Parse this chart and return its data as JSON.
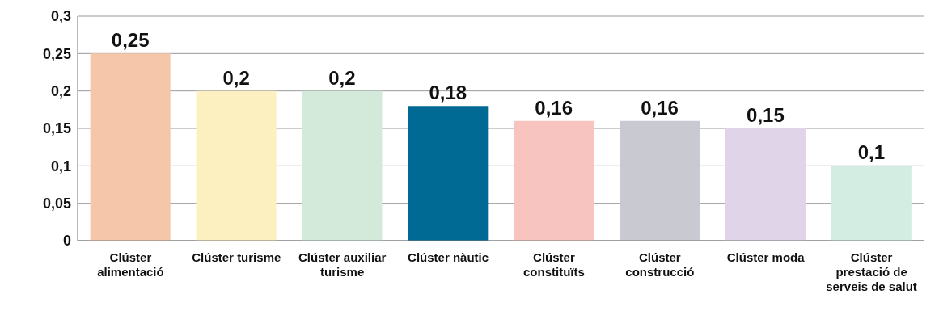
{
  "chart_data": {
    "type": "bar",
    "categories": [
      "Clúster alimentació",
      "Clúster turisme",
      "Clúster auxiliar turisme",
      "Clúster nàutic",
      "Clúster constituïts",
      "Clúster construcció",
      "Clúster moda",
      "Clúster prestació de serveis de salut"
    ],
    "values": [
      0.25,
      0.2,
      0.2,
      0.18,
      0.16,
      0.16,
      0.15,
      0.1
    ],
    "colors": [
      "#f5c6aa",
      "#fcefc0",
      "#d3eadb",
      "#006994",
      "#f8c4c0",
      "#c9c9d1",
      "#e0d4e8",
      "#d3ede3"
    ],
    "value_labels": [
      "0,25",
      "0,2",
      "0,2",
      "0,18",
      "0,16",
      "0,16",
      "0,15",
      "0,1"
    ],
    "ylim": [
      0,
      0.3
    ],
    "yticks": [
      {
        "value": 0,
        "label": "0"
      },
      {
        "value": 0.05,
        "label": "0,05"
      },
      {
        "value": 0.1,
        "label": "0,1"
      },
      {
        "value": 0.15,
        "label": "0,15"
      },
      {
        "value": 0.2,
        "label": "0,2"
      },
      {
        "value": 0.25,
        "label": "0,25"
      },
      {
        "value": 0.3,
        "label": "0,3"
      }
    ],
    "grid": "y"
  }
}
